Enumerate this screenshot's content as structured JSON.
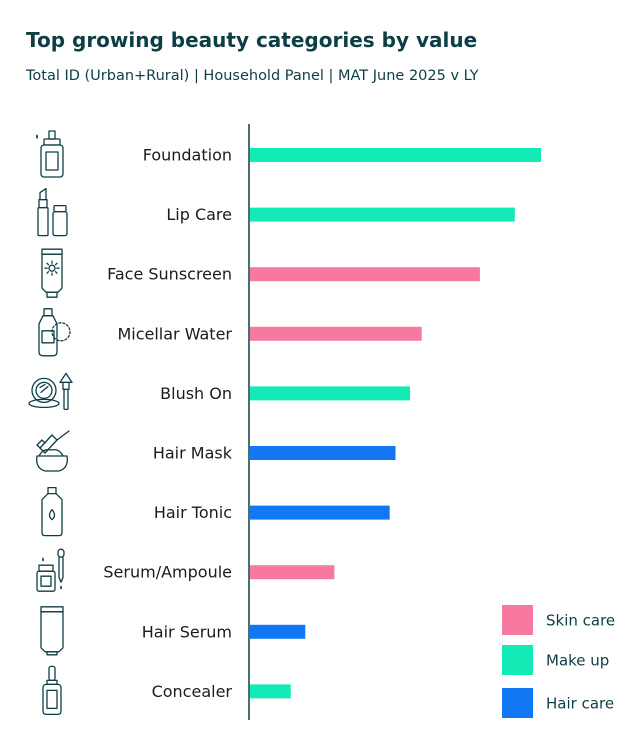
{
  "chart_data": {
    "type": "bar",
    "orientation": "horizontal",
    "title": "Top growing beauty categories by value",
    "subtitle": "Total ID (Urban+Rural) | Household Panel | MAT June 2025 v LY",
    "categories": [
      "Foundation",
      "Lip Care",
      "Face Sunscreen",
      "Micellar Water",
      "Blush On",
      "Hair Mask",
      "Hair Tonic",
      "Serum/Ampoule",
      "Hair Serum",
      "Concealer"
    ],
    "values": [
      100,
      91,
      79,
      59,
      55,
      50,
      48,
      29,
      19,
      14
    ],
    "groups": [
      "Make up",
      "Make up",
      "Skin care",
      "Skin care",
      "Make up",
      "Hair care",
      "Hair care",
      "Skin care",
      "Hair care",
      "Make up"
    ],
    "icons": [
      "foundation-bottle-icon",
      "lip-care-icon",
      "sunscreen-tube-icon",
      "micellar-water-icon",
      "compact-brush-icon",
      "hair-mask-icon",
      "hair-tonic-icon",
      "serum-dropper-icon",
      "hair-serum-tube-icon",
      "concealer-icon"
    ],
    "xlim": [
      0,
      100
    ],
    "grid": false,
    "legend": {
      "position": "bottom-right",
      "entries": [
        {
          "label": "Skin care",
          "color": "#f7799f"
        },
        {
          "label": "Make up",
          "color": "#12ebb5"
        },
        {
          "label": "Hair care",
          "color": "#1277f2"
        }
      ]
    }
  }
}
